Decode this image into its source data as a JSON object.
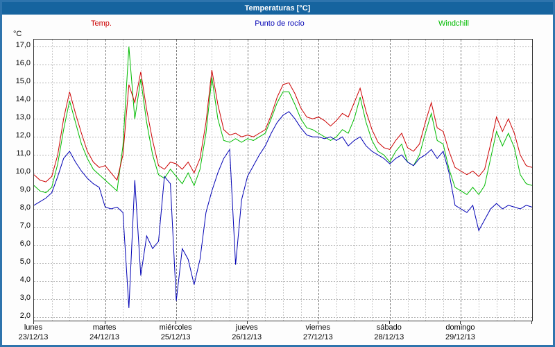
{
  "window": {
    "title": "Temperaturas [°C]"
  },
  "chart_data": {
    "type": "line",
    "title": "Temperaturas [°C]",
    "ylabel": "°C",
    "xlabel": "",
    "grid": true,
    "legend_position": "top",
    "ylim": [
      1.8,
      17.4
    ],
    "yticks": [
      2,
      3,
      4,
      5,
      6,
      7,
      8,
      9,
      10,
      11,
      12,
      13,
      14,
      15,
      16,
      17
    ],
    "x_range_hours": [
      0,
      168
    ],
    "x_step_hours": 2,
    "days": [
      {
        "name": "lunes",
        "date": "23/12/13"
      },
      {
        "name": "martes",
        "date": "24/12/13"
      },
      {
        "name": "miércoles",
        "date": "25/12/13"
      },
      {
        "name": "jueves",
        "date": "26/12/13"
      },
      {
        "name": "viernes",
        "date": "27/12/13"
      },
      {
        "name": "sábado",
        "date": "28/12/13"
      },
      {
        "name": "domingo",
        "date": "29/12/13"
      }
    ],
    "series": [
      {
        "name": "Temp.",
        "color": "#cc0000",
        "values": [
          9.9,
          9.6,
          9.5,
          9.8,
          11.0,
          13.0,
          14.5,
          13.3,
          12.2,
          11.2,
          10.6,
          10.3,
          10.4,
          10.0,
          9.6,
          11.0,
          14.9,
          13.9,
          15.6,
          13.5,
          11.8,
          10.4,
          10.2,
          10.6,
          10.5,
          10.2,
          10.6,
          10.0,
          10.8,
          12.8,
          15.7,
          13.8,
          12.4,
          12.1,
          12.2,
          12.0,
          12.1,
          12.0,
          12.2,
          12.4,
          13.2,
          14.2,
          14.9,
          15.0,
          14.4,
          13.6,
          13.1,
          13.0,
          13.1,
          12.9,
          12.6,
          12.9,
          13.3,
          13.1,
          13.9,
          14.7,
          13.4,
          12.4,
          11.7,
          11.4,
          11.3,
          11.8,
          12.2,
          11.4,
          11.2,
          11.6,
          12.8,
          13.9,
          12.5,
          12.3,
          11.2,
          10.3,
          10.1,
          9.9,
          10.1,
          9.8,
          10.2,
          11.6,
          13.1,
          12.3,
          13.0,
          12.2,
          11.0,
          10.4,
          10.3
        ]
      },
      {
        "name": "Punto de rocío",
        "color": "#0000b4",
        "values": [
          8.2,
          8.4,
          8.6,
          8.9,
          9.8,
          10.8,
          11.2,
          10.6,
          10.1,
          9.7,
          9.4,
          9.2,
          8.1,
          8.0,
          8.1,
          7.8,
          2.5,
          9.6,
          4.3,
          6.5,
          5.8,
          6.2,
          9.8,
          9.4,
          2.9,
          5.8,
          5.2,
          3.8,
          5.2,
          7.8,
          9.0,
          10.0,
          10.8,
          11.3,
          4.9,
          8.5,
          9.8,
          10.4,
          11.0,
          11.5,
          12.2,
          12.8,
          13.2,
          13.4,
          13.0,
          12.5,
          12.1,
          12.0,
          12.0,
          11.9,
          12.0,
          11.8,
          12.0,
          11.5,
          11.8,
          12.0,
          11.5,
          11.2,
          11.0,
          10.8,
          10.5,
          10.8,
          11.0,
          10.6,
          10.4,
          10.8,
          11.0,
          11.3,
          10.8,
          11.2,
          10.0,
          8.2,
          8.0,
          7.8,
          8.2,
          6.8,
          7.4,
          8.0,
          8.3,
          8.0,
          8.2,
          8.1,
          8.0,
          8.2,
          8.1
        ]
      },
      {
        "name": "Windchill",
        "color": "#00bb00",
        "values": [
          9.3,
          9.0,
          8.9,
          9.2,
          10.5,
          12.4,
          14.0,
          12.8,
          11.6,
          10.8,
          10.2,
          9.9,
          9.6,
          9.3,
          9.0,
          11.5,
          17.0,
          13.0,
          15.2,
          12.8,
          11.0,
          9.9,
          9.7,
          10.2,
          9.8,
          9.4,
          10.0,
          9.3,
          10.2,
          12.2,
          15.3,
          13.0,
          11.8,
          11.7,
          11.9,
          11.7,
          11.9,
          11.8,
          12.0,
          12.2,
          13.0,
          13.9,
          14.5,
          14.5,
          13.8,
          13.0,
          12.5,
          12.4,
          12.2,
          12.0,
          11.8,
          12.0,
          12.4,
          12.2,
          13.0,
          14.2,
          12.8,
          11.8,
          11.2,
          11.0,
          10.6,
          11.2,
          11.6,
          10.6,
          10.4,
          11.0,
          12.2,
          13.3,
          11.8,
          11.6,
          10.2,
          9.2,
          9.0,
          8.8,
          9.2,
          8.8,
          9.3,
          10.8,
          12.3,
          11.5,
          12.2,
          11.4,
          9.9,
          9.4,
          9.3
        ]
      }
    ]
  }
}
